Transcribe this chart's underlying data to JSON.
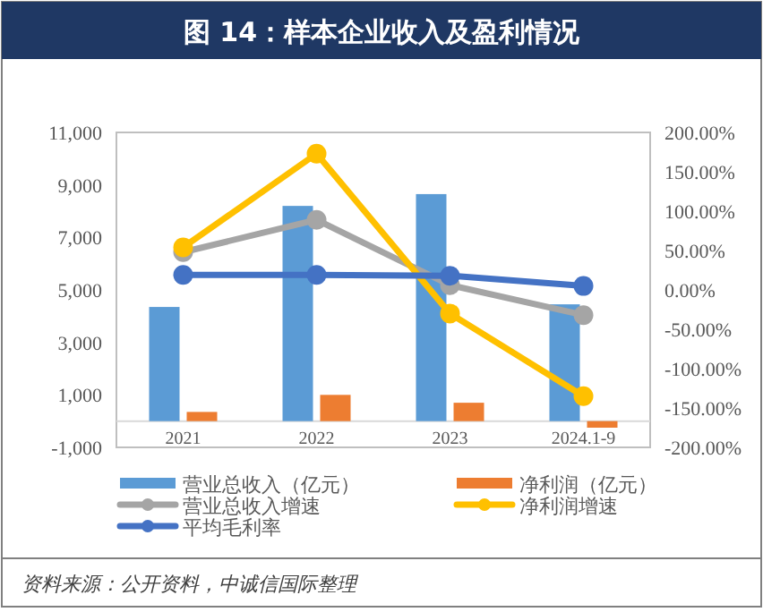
{
  "chart_data": {
    "type": "bar",
    "title": "图 14：样本企业收入及盈利情况",
    "categories": [
      "2021",
      "2022",
      "2023",
      "2024.1-9"
    ],
    "series": [
      {
        "name": "营业总收入（亿元）",
        "color": "#5b9bd5",
        "values": [
          4350,
          8200,
          8650,
          4450
        ]
      },
      {
        "name": "净利润（亿元）",
        "color": "#ed7d31",
        "values": [
          350,
          1000,
          700,
          -250
        ]
      },
      {
        "name": "营业总收入增速",
        "type": "line",
        "axis": "y2",
        "color": "#a5a5a5",
        "marker": "circle",
        "values": [
          48,
          89,
          6,
          -32
        ]
      },
      {
        "name": "净利润增速",
        "type": "line",
        "axis": "y2",
        "color": "#ffc000",
        "marker": "circle",
        "values": [
          54,
          173,
          -30,
          -135
        ]
      },
      {
        "name": "平均毛利率",
        "type": "line",
        "axis": "y2",
        "color": "#4472c4",
        "marker": "circle",
        "values": [
          19,
          19,
          18,
          5
        ]
      }
    ],
    "ylim": [
      -1000,
      11000
    ],
    "yticks": [
      {
        "value": -1000,
        "label": "-1,000"
      },
      {
        "value": 1000,
        "label": "1,000"
      },
      {
        "value": 3000,
        "label": "3,000"
      },
      {
        "value": 5000,
        "label": "5,000"
      },
      {
        "value": 7000,
        "label": "7,000"
      },
      {
        "value": 9000,
        "label": "9,000"
      },
      {
        "value": 11000,
        "label": "11,000"
      }
    ],
    "y2lim": [
      -200,
      200
    ],
    "y2ticks": [
      {
        "value": -200,
        "label": "-200.00%"
      },
      {
        "value": -150,
        "label": "-150.00%"
      },
      {
        "value": -100,
        "label": "-100.00%"
      },
      {
        "value": -50,
        "label": "-50.00%"
      },
      {
        "value": 0,
        "label": "0.00%"
      },
      {
        "value": 50,
        "label": "50.00%"
      },
      {
        "value": 100,
        "label": "100.00%"
      },
      {
        "value": 150,
        "label": "150.00%"
      },
      {
        "value": 200,
        "label": "200.00%"
      }
    ],
    "legend": "bottom",
    "annotations": [
      "资料来源：公开资料，中诚信国际整理"
    ]
  }
}
